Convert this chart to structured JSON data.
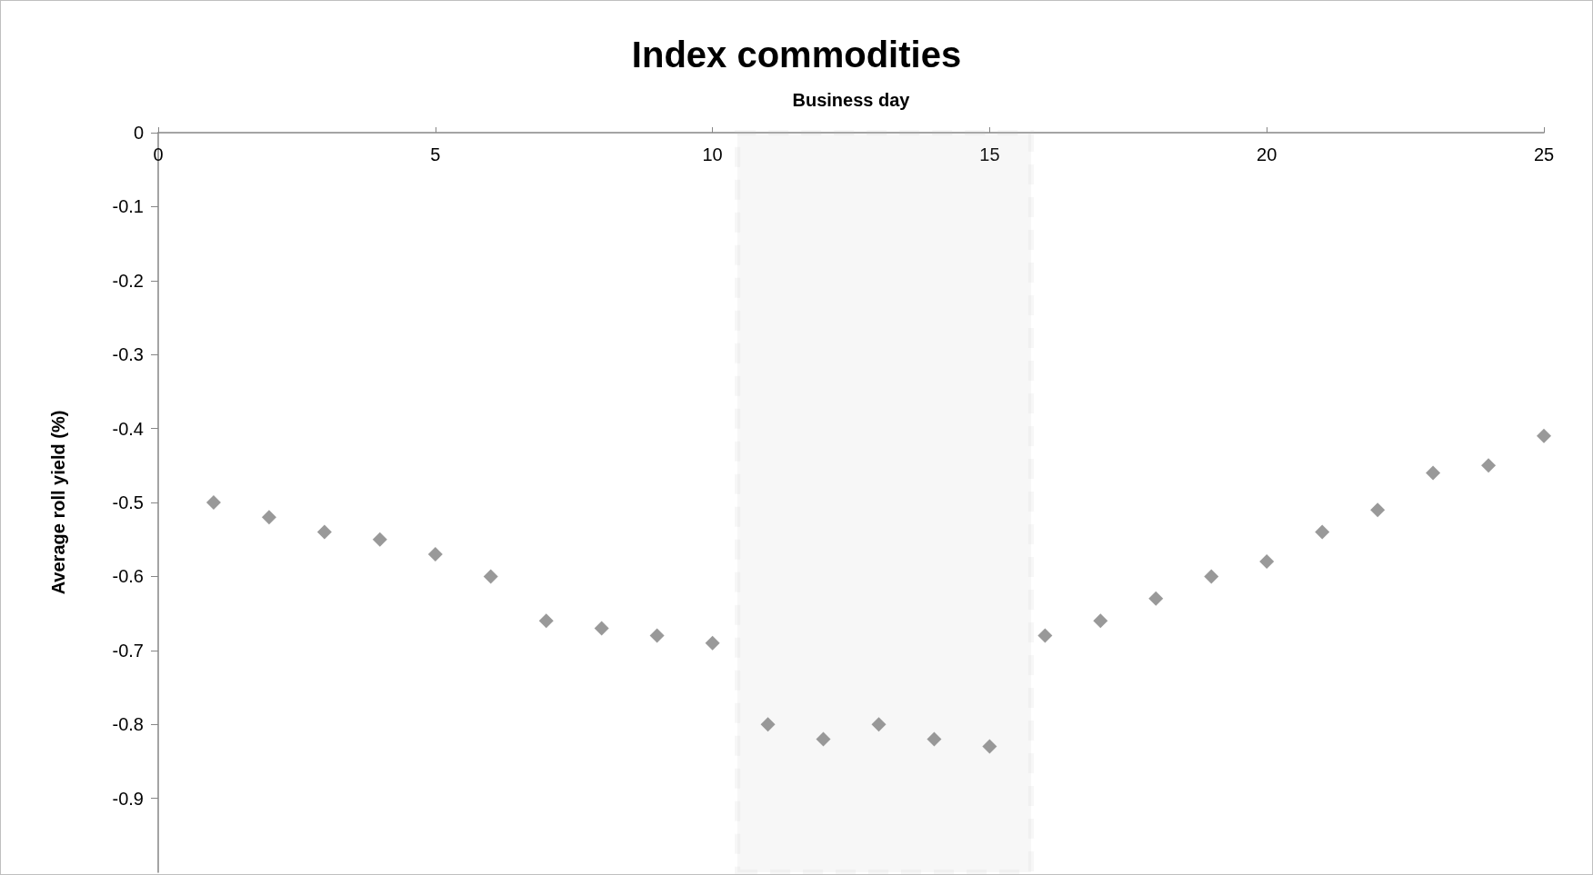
{
  "chart_data": {
    "type": "scatter",
    "title": "Index commodities",
    "xlabel": "Business day",
    "ylabel": "Average roll yield (%)",
    "x": [
      1,
      2,
      3,
      4,
      5,
      6,
      7,
      8,
      9,
      10,
      11,
      12,
      13,
      14,
      15,
      16,
      17,
      18,
      19,
      20,
      21,
      22,
      23,
      24,
      25
    ],
    "series": [
      {
        "color": "#7f7f7f",
        "values": [
          -0.5,
          -0.52,
          -0.54,
          -0.55,
          -0.57,
          -0.6,
          -0.66,
          -0.67,
          -0.68,
          -0.69,
          -0.8,
          -0.82,
          -0.8,
          -0.82,
          -0.83,
          -0.68,
          -0.66,
          -0.63,
          -0.6,
          -0.58,
          -0.54,
          -0.51,
          -0.46,
          -0.45,
          -0.41
        ]
      }
    ],
    "xlim": [
      0,
      25
    ],
    "xticks": [
      0,
      5,
      10,
      15,
      20,
      25
    ],
    "ylim": [
      -1,
      0
    ],
    "yticks": [
      0,
      -0.1,
      -0.2,
      -0.3,
      -0.4,
      -0.5,
      -0.6,
      -0.7,
      -0.8,
      -0.9
    ],
    "bands": [
      {
        "axis": "x",
        "from": 10.45,
        "to": 15.75,
        "color": "#bfbfbf"
      }
    ],
    "marker": "diamond",
    "grid": false
  }
}
